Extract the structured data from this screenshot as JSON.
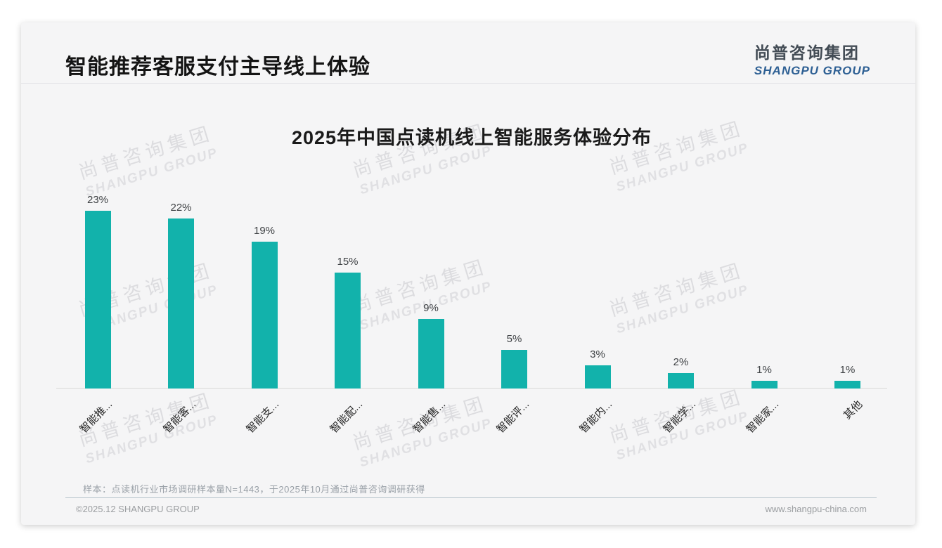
{
  "header": {
    "title": "智能推荐客服支付主导线上体验",
    "logo_cn": "尚普咨询集团",
    "logo_en": "SHANGPU GROUP"
  },
  "watermark": {
    "cn": "尚普咨询集团",
    "en": "SHANGPU GROUP"
  },
  "chart_data": {
    "type": "bar",
    "title": "2025年中国点读机线上智能服务体验分布",
    "categories": [
      "智能推...",
      "智能客...",
      "智能支...",
      "智能配...",
      "智能售...",
      "智能评...",
      "智能内...",
      "智能学...",
      "智能家...",
      "其他"
    ],
    "values": [
      23,
      22,
      19,
      15,
      9,
      5,
      3,
      2,
      1,
      1
    ],
    "value_labels": [
      "23%",
      "22%",
      "19%",
      "15%",
      "9%",
      "5%",
      "3%",
      "2%",
      "1%",
      "1%"
    ],
    "bar_color": "#12b2ab",
    "xlabel": "",
    "ylabel": "",
    "ylim": [
      0,
      25
    ],
    "grid": false,
    "legend": null,
    "data_labels": "above bars, percent",
    "x_tick_rotation": -45
  },
  "footer": {
    "note": "样本：点读机行业市场调研样本量N=1443，于2025年10月通过尚普咨询调研获得",
    "copyright": "©2025.12 SHANGPU GROUP",
    "website": "www.shangpu-china.com"
  }
}
